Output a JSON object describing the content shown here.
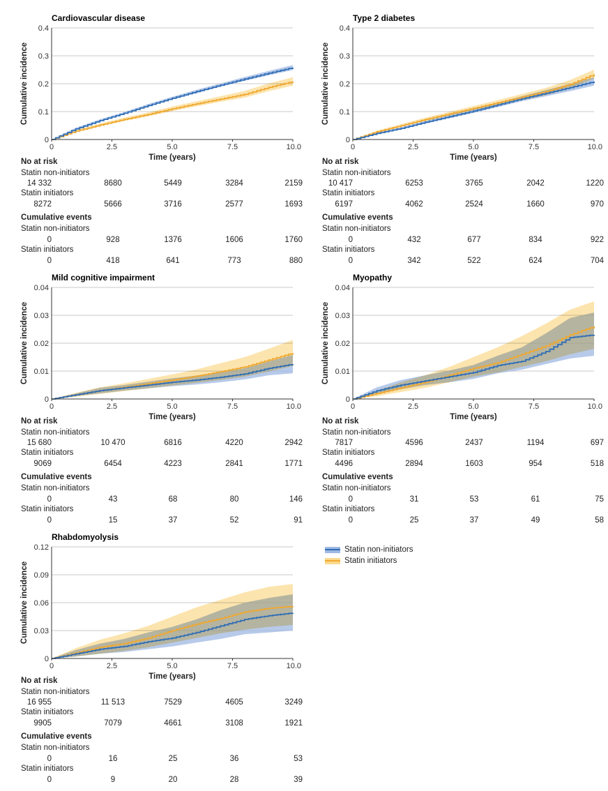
{
  "colors": {
    "non_initiators_line": "#2f6db5",
    "non_initiators_band": "#9fb8e3",
    "initiators_line": "#f0a830",
    "initiators_band": "#fbd98c",
    "overlap_band": "#b8b3b8",
    "grid": "#c8c8c8"
  },
  "legend": {
    "non_initiators": "Statin non-initiators",
    "initiators": "Statin initiators"
  },
  "common": {
    "ylabel": "Cumulative incidence",
    "xlabel": "Time (years)",
    "no_at_risk": "No at risk",
    "cumulative_events": "Cumulative events",
    "x_ticks": [
      "0",
      "2.5",
      "5.0",
      "7.5",
      "10.0"
    ]
  },
  "chart_data": [
    {
      "type": "line",
      "title": "Cardiovascular disease",
      "xlabel": "Time (years)",
      "ylabel": "Cumulative incidence",
      "xlim": [
        0,
        10
      ],
      "ylim": [
        0,
        0.4
      ],
      "y_ticks": [
        "0",
        "0.1",
        "0.2",
        "0.3",
        "0.4"
      ],
      "x": [
        0,
        1,
        2,
        3,
        4,
        5,
        6,
        7,
        8,
        9,
        10
      ],
      "series": [
        {
          "name": "Statin non-initiators",
          "values": [
            0,
            0.038,
            0.068,
            0.094,
            0.122,
            0.148,
            0.172,
            0.195,
            0.217,
            0.238,
            0.258
          ],
          "lower": [
            0,
            0.034,
            0.064,
            0.09,
            0.117,
            0.143,
            0.166,
            0.189,
            0.21,
            0.23,
            0.249
          ],
          "upper": [
            0,
            0.042,
            0.072,
            0.098,
            0.127,
            0.153,
            0.178,
            0.201,
            0.224,
            0.246,
            0.267
          ]
        },
        {
          "name": "Statin initiators",
          "values": [
            0,
            0.03,
            0.052,
            0.072,
            0.09,
            0.11,
            0.128,
            0.145,
            0.162,
            0.187,
            0.208
          ],
          "lower": [
            0,
            0.026,
            0.047,
            0.066,
            0.083,
            0.102,
            0.119,
            0.135,
            0.15,
            0.173,
            0.193
          ],
          "upper": [
            0,
            0.034,
            0.057,
            0.078,
            0.097,
            0.118,
            0.137,
            0.155,
            0.174,
            0.201,
            0.223
          ]
        }
      ],
      "table": {
        "risk": {
          "non": [
            "14 332",
            "8680",
            "5449",
            "3284",
            "2159"
          ],
          "ini": [
            "8272",
            "5666",
            "3716",
            "2577",
            "1693"
          ]
        },
        "events": {
          "non": [
            "0",
            "928",
            "1376",
            "1606",
            "1760"
          ],
          "ini": [
            "0",
            "418",
            "641",
            "773",
            "880"
          ]
        }
      }
    },
    {
      "type": "line",
      "title": "Type 2 diabetes",
      "xlabel": "Time (years)",
      "ylabel": "Cumulative incidence",
      "xlim": [
        0,
        10
      ],
      "ylim": [
        0,
        0.4
      ],
      "y_ticks": [
        "0",
        "0.1",
        "0.2",
        "0.3",
        "0.4"
      ],
      "x": [
        0,
        1,
        2,
        3,
        4,
        5,
        6,
        7,
        8,
        9,
        10
      ],
      "series": [
        {
          "name": "Statin non-initiators",
          "values": [
            0,
            0.022,
            0.04,
            0.062,
            0.082,
            0.102,
            0.124,
            0.146,
            0.166,
            0.186,
            0.208
          ],
          "lower": [
            0,
            0.019,
            0.036,
            0.057,
            0.076,
            0.095,
            0.116,
            0.137,
            0.155,
            0.173,
            0.193
          ],
          "upper": [
            0,
            0.025,
            0.044,
            0.067,
            0.088,
            0.109,
            0.132,
            0.155,
            0.177,
            0.199,
            0.223
          ]
        },
        {
          "name": "Statin initiators",
          "values": [
            0,
            0.028,
            0.05,
            0.072,
            0.092,
            0.112,
            0.132,
            0.152,
            0.172,
            0.198,
            0.234
          ],
          "lower": [
            0,
            0.024,
            0.045,
            0.066,
            0.085,
            0.104,
            0.123,
            0.141,
            0.159,
            0.183,
            0.218
          ],
          "upper": [
            0,
            0.032,
            0.055,
            0.078,
            0.099,
            0.12,
            0.141,
            0.163,
            0.185,
            0.213,
            0.25
          ]
        }
      ],
      "table": {
        "risk": {
          "non": [
            "10 417",
            "6253",
            "3765",
            "2042",
            "1220"
          ],
          "ini": [
            "6197",
            "4062",
            "2524",
            "1660",
            "970"
          ]
        },
        "events": {
          "non": [
            "0",
            "432",
            "677",
            "834",
            "922"
          ],
          "ini": [
            "0",
            "342",
            "522",
            "624",
            "704"
          ]
        }
      }
    },
    {
      "type": "line",
      "title": "Mild cognitive impairment",
      "xlabel": "Time (years)",
      "ylabel": "Cumulative incidence",
      "xlim": [
        0,
        10
      ],
      "ylim": [
        0,
        0.04
      ],
      "y_ticks": [
        "0",
        "0.01",
        "0.02",
        "0.03",
        "0.04"
      ],
      "x": [
        0,
        1,
        2,
        3,
        4,
        5,
        6,
        7,
        8,
        9,
        10
      ],
      "series": [
        {
          "name": "Statin non-initiators",
          "values": [
            0,
            0.0015,
            0.003,
            0.004,
            0.005,
            0.006,
            0.0068,
            0.0078,
            0.009,
            0.011,
            0.0125
          ],
          "lower": [
            0,
            0.001,
            0.002,
            0.003,
            0.0038,
            0.0046,
            0.0052,
            0.006,
            0.007,
            0.0085,
            0.0092
          ],
          "upper": [
            0,
            0.002,
            0.004,
            0.005,
            0.0062,
            0.0074,
            0.0084,
            0.0096,
            0.011,
            0.0135,
            0.0158
          ]
        },
        {
          "name": "Statin initiators",
          "values": [
            0,
            0.0015,
            0.003,
            0.0042,
            0.0055,
            0.0068,
            0.0082,
            0.0098,
            0.0115,
            0.014,
            0.0165
          ],
          "lower": [
            0,
            0.0008,
            0.0018,
            0.0028,
            0.0038,
            0.0048,
            0.0058,
            0.0068,
            0.008,
            0.0098,
            0.0118
          ],
          "upper": [
            0,
            0.0022,
            0.0042,
            0.0056,
            0.0072,
            0.0088,
            0.0106,
            0.0128,
            0.015,
            0.018,
            0.0212
          ]
        }
      ],
      "table": {
        "risk": {
          "non": [
            "15 680",
            "10 470",
            "6816",
            "4220",
            "2942"
          ],
          "ini": [
            "9069",
            "6454",
            "4223",
            "2841",
            "1771"
          ]
        },
        "events": {
          "non": [
            "0",
            "43",
            "68",
            "80",
            "146"
          ],
          "ini": [
            "0",
            "15",
            "37",
            "52",
            "91"
          ]
        }
      }
    },
    {
      "type": "line",
      "title": "Myopathy",
      "xlabel": "Time (years)",
      "ylabel": "Cumulative incidence",
      "xlim": [
        0,
        10
      ],
      "ylim": [
        0,
        0.04
      ],
      "y_ticks": [
        "0",
        "0.01",
        "0.02",
        "0.03",
        "0.04"
      ],
      "x": [
        0,
        1,
        2,
        3,
        4,
        5,
        6,
        7,
        8,
        9,
        10
      ],
      "series": [
        {
          "name": "Statin non-initiators",
          "values": [
            0,
            0.003,
            0.005,
            0.0065,
            0.008,
            0.0095,
            0.012,
            0.0135,
            0.017,
            0.022,
            0.023
          ],
          "lower": [
            0,
            0.0018,
            0.0035,
            0.005,
            0.006,
            0.0072,
            0.0092,
            0.0105,
            0.0125,
            0.0145,
            0.0155
          ],
          "upper": [
            0,
            0.0042,
            0.0068,
            0.0085,
            0.0102,
            0.0122,
            0.0155,
            0.0185,
            0.0235,
            0.029,
            0.031
          ]
        },
        {
          "name": "Statin initiators",
          "values": [
            0,
            0.002,
            0.004,
            0.006,
            0.0085,
            0.011,
            0.013,
            0.016,
            0.019,
            0.023,
            0.026
          ],
          "lower": [
            0,
            0.001,
            0.0025,
            0.004,
            0.006,
            0.008,
            0.0095,
            0.0115,
            0.0135,
            0.016,
            0.018
          ],
          "upper": [
            0,
            0.003,
            0.006,
            0.0085,
            0.0115,
            0.015,
            0.0185,
            0.0225,
            0.027,
            0.032,
            0.035
          ]
        }
      ],
      "table": {
        "risk": {
          "non": [
            "7817",
            "4596",
            "2437",
            "1194",
            "697"
          ],
          "ini": [
            "4496",
            "2894",
            "1603",
            "954",
            "518"
          ]
        },
        "events": {
          "non": [
            "0",
            "31",
            "53",
            "61",
            "75"
          ],
          "ini": [
            "0",
            "25",
            "37",
            "49",
            "58"
          ]
        }
      }
    },
    {
      "type": "line",
      "title": "Rhabdomyolysis",
      "xlabel": "Time (years)",
      "ylabel": "Cumulative incidence",
      "xlim": [
        0,
        10
      ],
      "ylim": [
        0,
        0.12
      ],
      "y_ticks": [
        "0",
        "0.03",
        "0.06",
        "0.09",
        "0.12"
      ],
      "x": [
        0,
        1,
        2,
        3,
        4,
        5,
        6,
        7,
        8,
        9,
        10
      ],
      "series": [
        {
          "name": "Statin non-initiators",
          "values": [
            0,
            0.005,
            0.01,
            0.013,
            0.018,
            0.022,
            0.028,
            0.035,
            0.042,
            0.046,
            0.049
          ],
          "lower": [
            0,
            0.002,
            0.005,
            0.007,
            0.01,
            0.013,
            0.017,
            0.021,
            0.026,
            0.028,
            0.03
          ],
          "upper": [
            0,
            0.009,
            0.016,
            0.021,
            0.028,
            0.034,
            0.042,
            0.052,
            0.06,
            0.065,
            0.069
          ]
        },
        {
          "name": "Statin initiators",
          "values": [
            0,
            0.006,
            0.012,
            0.016,
            0.022,
            0.03,
            0.037,
            0.043,
            0.05,
            0.054,
            0.056
          ],
          "lower": [
            0,
            0.002,
            0.005,
            0.008,
            0.012,
            0.017,
            0.022,
            0.027,
            0.031,
            0.034,
            0.036
          ],
          "upper": [
            0,
            0.011,
            0.02,
            0.027,
            0.035,
            0.045,
            0.055,
            0.063,
            0.071,
            0.077,
            0.08
          ]
        }
      ],
      "table": {
        "risk": {
          "non": [
            "16 955",
            "11 513",
            "7529",
            "4605",
            "3249"
          ],
          "ini": [
            "9905",
            "7079",
            "4661",
            "3108",
            "1921"
          ]
        },
        "events": {
          "non": [
            "0",
            "16",
            "25",
            "36",
            "53"
          ],
          "ini": [
            "0",
            "9",
            "20",
            "28",
            "39"
          ]
        }
      }
    }
  ]
}
